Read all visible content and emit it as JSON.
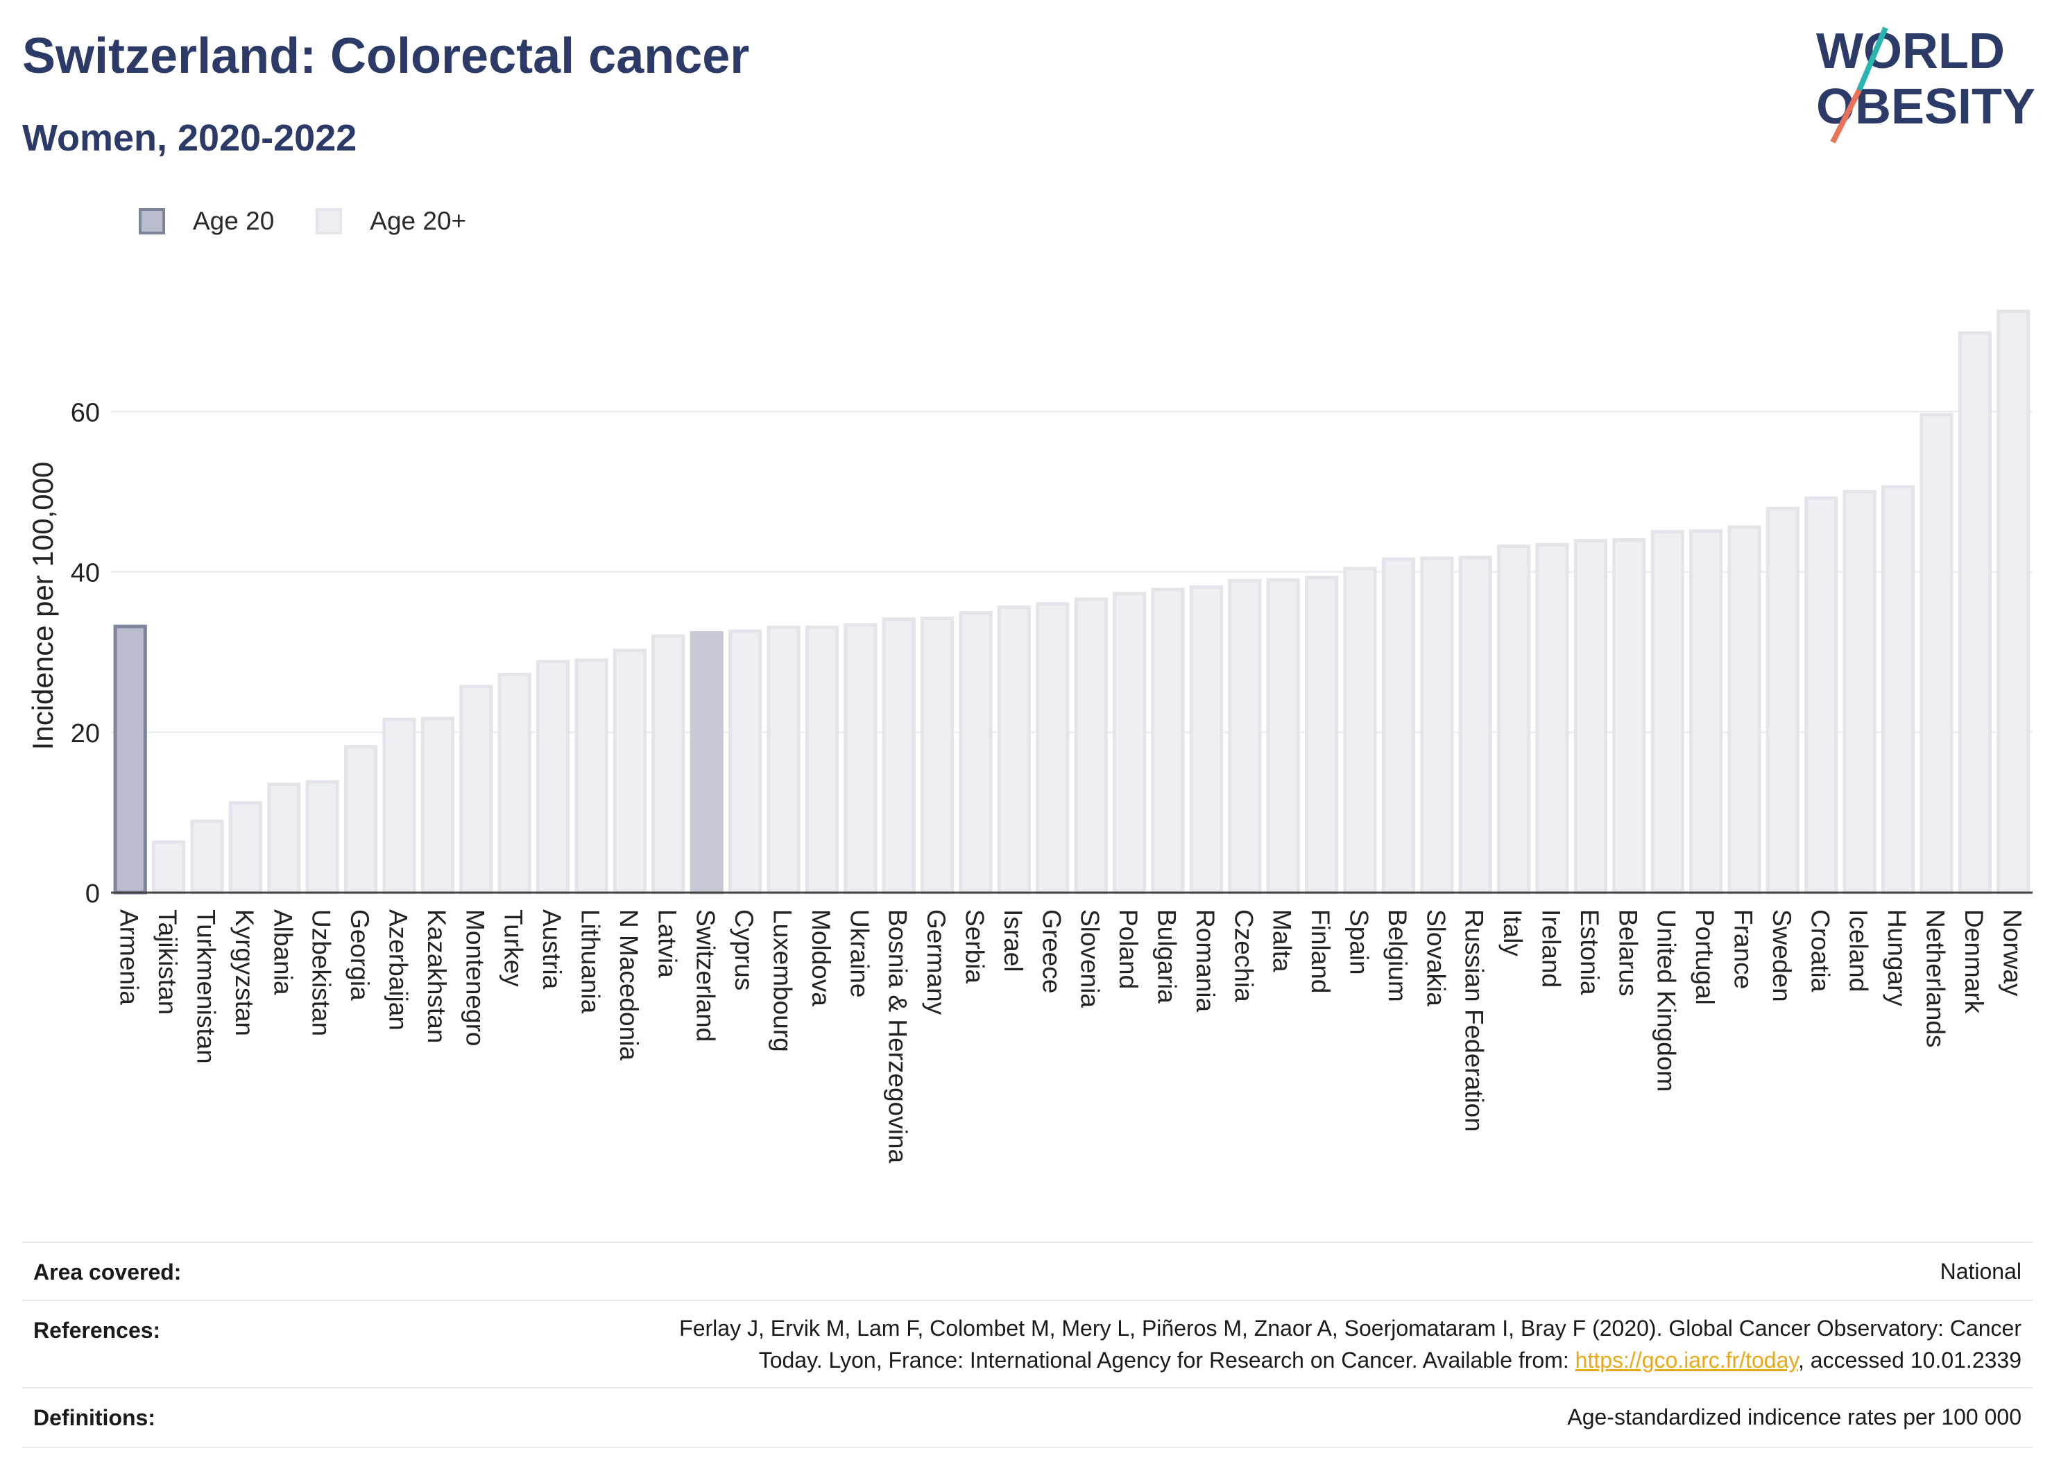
{
  "header": {
    "title": "Switzerland: Colorectal cancer",
    "subtitle": "Women, 2020-2022"
  },
  "logo": {
    "line1": "WORLD",
    "line2": "OBESITY",
    "colors": {
      "text": "#2b3a67",
      "accent_teal": "#2bb5b0",
      "accent_coral": "#e8735a"
    }
  },
  "legend": {
    "items": [
      {
        "label": "Age 20",
        "color": "#b8bccb"
      },
      {
        "label": "Age 20+",
        "color": "#eeeff3"
      }
    ]
  },
  "chart_data": {
    "type": "bar",
    "ylabel": "Incidence per 100,000",
    "ylim": [
      0,
      75
    ],
    "yticks": [
      0,
      20,
      40,
      60
    ],
    "grid": true,
    "highlight": "Switzerland",
    "categories": [
      "Armenia",
      "Tajikistan",
      "Turkmenistan",
      "Kyrgyzstan",
      "Albania",
      "Uzbekistan",
      "Georgia",
      "Azerbaijan",
      "Kazakhstan",
      "Montenegro",
      "Turkey",
      "Austria",
      "Lithuania",
      "N Macedonia",
      "Latvia",
      "Switzerland",
      "Cyprus",
      "Luxembourg",
      "Moldova",
      "Ukraine",
      "Bosnia & Herzegovina",
      "Germany",
      "Serbia",
      "Israel",
      "Greece",
      "Slovenia",
      "Poland",
      "Bulgaria",
      "Romania",
      "Czechia",
      "Malta",
      "Finland",
      "Spain",
      "Belgium",
      "Slovakia",
      "Russian Federation",
      "Italy",
      "Ireland",
      "Estonia",
      "Belarus",
      "United Kingdom",
      "Portugal",
      "France",
      "Sweden",
      "Croatia",
      "Iceland",
      "Hungary",
      "Netherlands",
      "Denmark",
      "Norway"
    ],
    "series": [
      {
        "name": "Age 20",
        "values": [
          33.2,
          null,
          null,
          null,
          null,
          null,
          null,
          null,
          null,
          null,
          null,
          null,
          null,
          null,
          null,
          null,
          null,
          null,
          null,
          null,
          null,
          null,
          null,
          null,
          null,
          null,
          null,
          null,
          null,
          null,
          null,
          null,
          null,
          null,
          null,
          null,
          null,
          null,
          null,
          null,
          null,
          null,
          null,
          null,
          null,
          null,
          null,
          null,
          null,
          null
        ]
      },
      {
        "name": "Age 20+",
        "values": [
          null,
          6.3,
          8.9,
          11.2,
          13.5,
          13.8,
          18.2,
          21.6,
          21.7,
          25.7,
          27.2,
          28.8,
          29.0,
          30.2,
          32.0,
          32.4,
          32.6,
          33.1,
          33.1,
          33.4,
          34.1,
          34.2,
          34.9,
          35.6,
          36.0,
          36.6,
          37.3,
          37.8,
          38.1,
          38.9,
          39.0,
          39.3,
          40.4,
          41.6,
          41.7,
          41.8,
          43.2,
          43.4,
          43.9,
          44.0,
          45.0,
          45.1,
          45.6,
          47.9,
          49.2,
          50.0,
          50.6,
          59.6,
          69.8,
          72.5
        ]
      }
    ],
    "colors": {
      "age20_fill": "#b8bccb",
      "age20_stroke": "#7d849c",
      "age20plus_fill": "#eeeff3",
      "age20plus_stroke": "#e3e5eb",
      "highlight_fill": "#c8cbd7"
    }
  },
  "info": {
    "area": {
      "label": "Area covered:",
      "value": "National"
    },
    "references": {
      "label": "References:",
      "line1": "Ferlay J, Ervik M, Lam F, Colombet M, Mery L, Piñeros M, Znaor A, Soerjomataram I, Bray F (2020). Global Cancer Observatory: Cancer",
      "line2_pre": "Today. Lyon, France: International Agency for Research on Cancer. Available from: ",
      "link": "https://gco.iarc.fr/today",
      "line2_post": ", accessed 10.01.2339"
    },
    "definitions": {
      "label": "Definitions:",
      "value": "Age-standardized indicence rates per 100 000"
    }
  }
}
